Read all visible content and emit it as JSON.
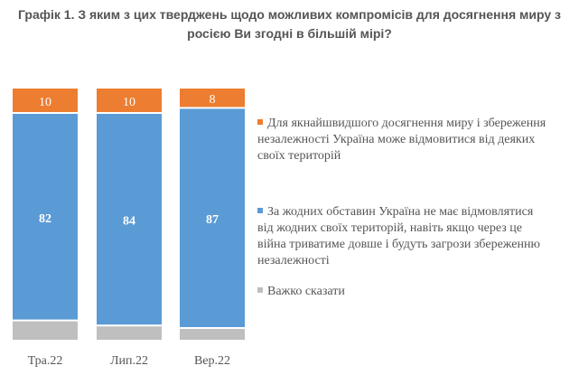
{
  "chart_data": {
    "type": "bar",
    "stacked": true,
    "title": "Графік 1. З яким з цих тверджень щодо можливих компромісів для досягнення миру з росією Ви згодні в більшій мірі?",
    "categories": [
      "Тра.22",
      "Лип.22",
      "Вер.22"
    ],
    "series": [
      {
        "name": "Для якнайшвидшого досягнення миру і збереження незалежності Україна може відмовитися від деяких своїх територій",
        "color": "#ED7D31",
        "values": [
          10,
          10,
          8
        ]
      },
      {
        "name": "За жодних обставин Україна не має відмовлятися від жодних своїх територій, навіть якщо через це війна триватиме довше і будуть загрози збереженню незалежності",
        "color": "#5B9BD5",
        "values": [
          82,
          84,
          87
        ]
      },
      {
        "name": "Важко сказати",
        "color": "#BFBFBF",
        "values": [
          8,
          6,
          5
        ]
      }
    ],
    "data_labels": true,
    "grid": false,
    "legend_placement": "right",
    "ylim": [
      0,
      100
    ]
  }
}
